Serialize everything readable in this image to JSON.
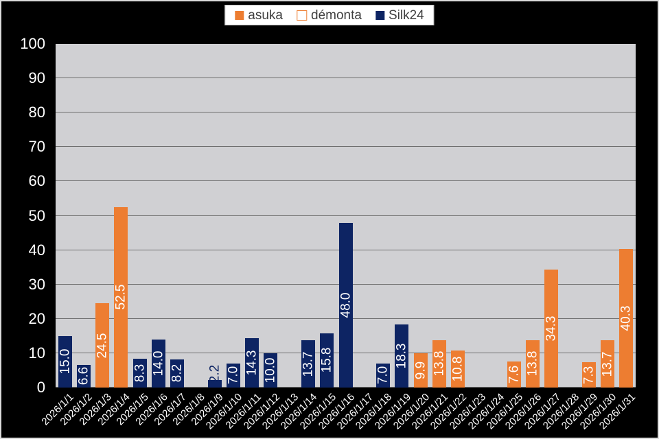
{
  "chart_data": {
    "type": "bar",
    "title": "",
    "categories": [
      "2026/1/1",
      "2026/1/2",
      "2026/1/3",
      "2026/1/4",
      "2026/1/5",
      "2026/1/6",
      "2026/1/7",
      "2026/1/8",
      "2026/1/9",
      "2026/1/10",
      "2026/1/11",
      "2026/1/12",
      "2026/1/13",
      "2026/1/14",
      "2026/1/15",
      "2026/1/16",
      "2026/1/17",
      "2026/1/18",
      "2026/1/19",
      "2026/1/20",
      "2026/1/21",
      "2026/1/22",
      "2026/1/23",
      "2026/1/24",
      "2026/1/25",
      "2026/1/26",
      "2026/1/27",
      "2026/1/28",
      "2026/1/29",
      "2026/1/30",
      "2026/1/31"
    ],
    "series": [
      {
        "name": "asuka",
        "color": "#ED7D31",
        "fill": "solid",
        "values": [
          null,
          null,
          24.5,
          52.5,
          null,
          null,
          null,
          null,
          null,
          null,
          null,
          null,
          null,
          null,
          null,
          null,
          null,
          null,
          null,
          9.9,
          13.8,
          10.8,
          null,
          null,
          7.6,
          13.8,
          34.3,
          null,
          7.3,
          13.7,
          40.3
        ]
      },
      {
        "name": "démonta",
        "color": "#ED7D31",
        "fill": "outline",
        "values": [
          null,
          null,
          null,
          null,
          null,
          null,
          null,
          null,
          null,
          null,
          null,
          null,
          null,
          null,
          null,
          null,
          null,
          null,
          null,
          null,
          null,
          null,
          null,
          null,
          null,
          null,
          null,
          null,
          null,
          null,
          null
        ]
      },
      {
        "name": "Silk24",
        "color": "#0D2463",
        "fill": "solid",
        "values": [
          15.0,
          6.6,
          null,
          null,
          8.3,
          14.0,
          8.2,
          null,
          2.2,
          7.0,
          14.3,
          10.0,
          null,
          13.7,
          15.8,
          48.0,
          null,
          7.0,
          18.3,
          null,
          null,
          null,
          null,
          null,
          null,
          null,
          null,
          null,
          null,
          null,
          null
        ]
      }
    ],
    "ylim": [
      0,
      100
    ],
    "ytick_step": 10,
    "grid": true,
    "legend_position": "top-center",
    "data_labels": {
      "show": true,
      "format": "0.0",
      "orientation": "vertical",
      "position": "inside-center"
    }
  },
  "colors": {
    "background": "#000000",
    "plot_background": "#D0D0D3",
    "gridline": "#6E6E6E",
    "axis_text": "#FFFFFF",
    "bar_label_text": "#FFFFFF",
    "legend_background": "#FFFFFF",
    "legend_border": "#BFBFBF",
    "legend_text": "#3F3F3F",
    "outer_border": "#DCDCDC"
  }
}
